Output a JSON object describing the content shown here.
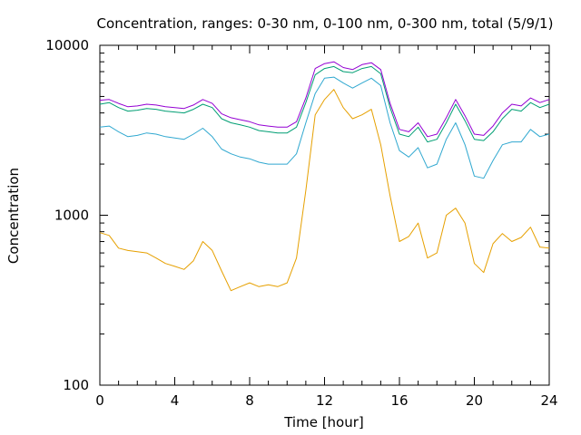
{
  "chart_data": {
    "type": "line",
    "title": "Concentration, ranges: 0-30 nm, 0-100 nm, 0-300 nm, total (5/9/1)",
    "xlabel": "Time [hour]",
    "ylabel": "Concentration",
    "xlim": [
      0,
      24
    ],
    "ylim": [
      100,
      10000
    ],
    "yscale": "log",
    "grid": false,
    "legend": "none",
    "x_ticks": [
      "0",
      "4",
      "8",
      "12",
      "16",
      "20",
      "24"
    ],
    "y_ticks": [
      "100",
      "1000",
      "10000"
    ],
    "x": [
      0,
      0.5,
      1,
      1.5,
      2,
      2.5,
      3,
      3.5,
      4,
      4.5,
      5,
      5.5,
      6,
      6.5,
      7,
      7.5,
      8,
      8.5,
      9,
      9.5,
      10,
      10.5,
      11,
      11.5,
      12,
      12.5,
      13,
      13.5,
      14,
      14.5,
      15,
      15.5,
      16,
      16.5,
      17,
      17.5,
      18,
      18.5,
      19,
      19.5,
      20,
      20.5,
      21,
      21.5,
      22,
      22.5,
      23,
      23.5,
      24
    ],
    "series": [
      {
        "color": "#e6a000",
        "values": [
          790,
          760,
          640,
          620,
          610,
          600,
          560,
          520,
          500,
          480,
          540,
          700,
          620,
          470,
          360,
          380,
          400,
          380,
          390,
          380,
          400,
          560,
          1400,
          3900,
          4800,
          5500,
          4300,
          3700,
          3900,
          4200,
          2600,
          1300,
          700,
          750,
          900,
          560,
          600,
          1000,
          1100,
          900,
          520,
          460,
          680,
          780,
          700,
          740,
          850,
          650,
          640
        ]
      },
      {
        "color": "#30a8d0",
        "values": [
          3300,
          3350,
          3100,
          2900,
          2950,
          3050,
          3000,
          2900,
          2850,
          2800,
          3000,
          3250,
          2900,
          2450,
          2300,
          2200,
          2150,
          2050,
          2000,
          2000,
          2000,
          2300,
          3500,
          5200,
          6400,
          6500,
          6000,
          5600,
          6000,
          6400,
          5800,
          3500,
          2400,
          2200,
          2500,
          1900,
          2000,
          2800,
          3500,
          2600,
          1700,
          1650,
          2100,
          2600,
          2700,
          2700,
          3200,
          2900,
          3000
        ]
      },
      {
        "color": "#009e73",
        "values": [
          4500,
          4600,
          4300,
          4100,
          4150,
          4250,
          4200,
          4100,
          4050,
          4000,
          4200,
          4500,
          4300,
          3700,
          3500,
          3400,
          3300,
          3150,
          3100,
          3050,
          3050,
          3300,
          4600,
          6700,
          7300,
          7500,
          7000,
          6900,
          7300,
          7500,
          6800,
          4300,
          3000,
          2900,
          3300,
          2700,
          2800,
          3500,
          4500,
          3600,
          2800,
          2750,
          3100,
          3700,
          4200,
          4100,
          4600,
          4300,
          4500
        ]
      },
      {
        "color": "#9400d3",
        "values": [
          4750,
          4800,
          4550,
          4350,
          4400,
          4500,
          4450,
          4350,
          4300,
          4250,
          4450,
          4800,
          4550,
          3950,
          3750,
          3650,
          3550,
          3400,
          3350,
          3300,
          3300,
          3550,
          4900,
          7300,
          7800,
          8000,
          7400,
          7200,
          7700,
          7900,
          7200,
          4550,
          3200,
          3100,
          3500,
          2900,
          3000,
          3750,
          4800,
          3850,
          3000,
          2950,
          3350,
          4000,
          4500,
          4400,
          4900,
          4600,
          4800
        ]
      }
    ]
  }
}
